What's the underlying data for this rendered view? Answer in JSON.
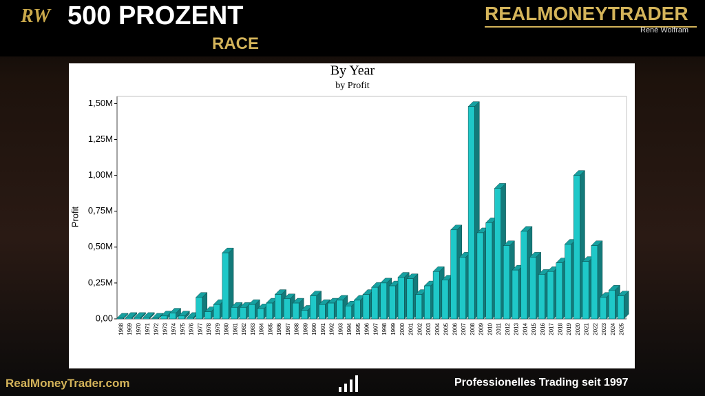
{
  "header": {
    "logo": "RW",
    "title": "500 PROZENT",
    "subtitle": "RACE",
    "brand": "REALMONEYTRADER",
    "author": "René Wolfram"
  },
  "footer": {
    "url": "RealMoneyTrader.com",
    "tagline": "Professionelles Trading seit 1997"
  },
  "chart_data": {
    "type": "bar3d",
    "title": "By Year",
    "subtitle": "by Profit",
    "y_label": "Profit",
    "categories": [
      "1968",
      "1969",
      "1970",
      "1971",
      "1972",
      "1973",
      "1974",
      "1975",
      "1976",
      "1977",
      "1978",
      "1979",
      "1980",
      "1981",
      "1982",
      "1983",
      "1984",
      "1985",
      "1986",
      "1987",
      "1988",
      "1989",
      "1990",
      "1991",
      "1992",
      "1993",
      "1994",
      "1995",
      "1996",
      "1997",
      "1998",
      "1999",
      "2000",
      "2001",
      "2002",
      "2003",
      "2004",
      "2005",
      "2006",
      "2007",
      "2008",
      "2009",
      "2010",
      "2011",
      "2012",
      "2013",
      "2014",
      "2015",
      "2016",
      "2017",
      "2018",
      "2019",
      "2020",
      "2021",
      "2022",
      "2023",
      "2024",
      "2025"
    ],
    "values": [
      5000,
      10000,
      10000,
      10000,
      5000,
      20000,
      40000,
      20000,
      10000,
      150000,
      50000,
      100000,
      460000,
      80000,
      80000,
      100000,
      70000,
      110000,
      170000,
      140000,
      110000,
      60000,
      160000,
      100000,
      110000,
      130000,
      90000,
      130000,
      170000,
      220000,
      250000,
      230000,
      290000,
      280000,
      170000,
      230000,
      330000,
      270000,
      620000,
      430000,
      1480000,
      600000,
      670000,
      910000,
      510000,
      340000,
      610000,
      430000,
      310000,
      330000,
      390000,
      520000,
      1000000,
      400000,
      510000,
      150000,
      200000,
      160000
    ],
    "color": "#1fc8c8",
    "ylim": [
      0,
      1550000
    ],
    "yticks": [
      {
        "value": 0,
        "label": "0,00"
      },
      {
        "value": 250000,
        "label": "0,25M"
      },
      {
        "value": 500000,
        "label": "0,50M"
      },
      {
        "value": 750000,
        "label": "0,75M"
      },
      {
        "value": 1000000,
        "label": "1,00M"
      },
      {
        "value": 1250000,
        "label": "1,25M"
      },
      {
        "value": 1500000,
        "label": "1,50M"
      }
    ],
    "grid": false
  }
}
